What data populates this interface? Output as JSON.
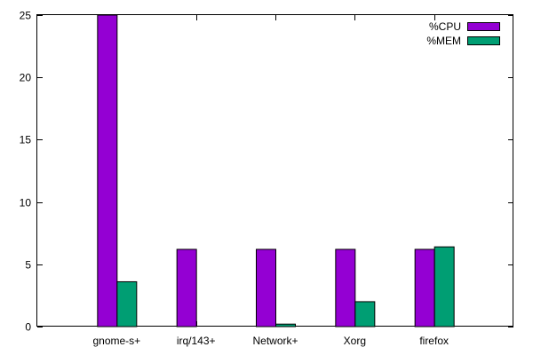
{
  "chart_data": {
    "type": "bar",
    "title": "",
    "xlabel": "",
    "ylabel": "",
    "categories": [
      "gnome-s+",
      "irq/143+",
      "Network+",
      "Xorg",
      "firefox"
    ],
    "series": [
      {
        "name": "%CPU",
        "color": "#9400d3",
        "values": [
          25.0,
          6.2,
          6.2,
          6.2,
          6.2
        ]
      },
      {
        "name": "%MEM",
        "color": "#009e73",
        "values": [
          3.6,
          0.0,
          0.2,
          2.0,
          6.4
        ]
      }
    ],
    "ylim": [
      0,
      25
    ],
    "yticks": [
      "0",
      "5",
      "10",
      "15",
      "20",
      "25"
    ],
    "grid": false,
    "legend_position": "top-right"
  }
}
